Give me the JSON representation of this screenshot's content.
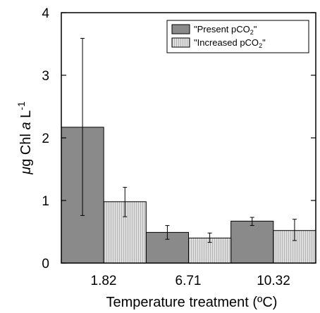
{
  "chart_data": {
    "type": "bar",
    "xlabel": "Temperature treatment (ºC)",
    "ylabel_parts": [
      "μ",
      "g Chl ",
      "a",
      " L",
      "-1"
    ],
    "ylim": [
      0,
      4
    ],
    "yticks": [
      "0",
      "1",
      "2",
      "3",
      "4"
    ],
    "categories": [
      "1.82",
      "6.71",
      "10.32"
    ],
    "series": [
      {
        "name_parts": [
          "\"Present pCO",
          "2",
          "\""
        ],
        "values": [
          2.17,
          0.49,
          0.67
        ],
        "error": [
          [
            0.76,
            3.59
          ],
          [
            0.38,
            0.6
          ],
          [
            0.6,
            0.73
          ]
        ],
        "color": "#8a8a8a",
        "pattern": "solid"
      },
      {
        "name_parts": [
          "\"Increased pCO",
          "2",
          "\""
        ],
        "values": [
          0.98,
          0.4,
          0.52
        ],
        "error": [
          [
            0.74,
            1.21
          ],
          [
            0.33,
            0.48
          ],
          [
            0.36,
            0.7
          ]
        ],
        "color": "#d4d4d4",
        "pattern": "vertical-hatch"
      }
    ],
    "grid": false,
    "legend_position": "top-right"
  }
}
